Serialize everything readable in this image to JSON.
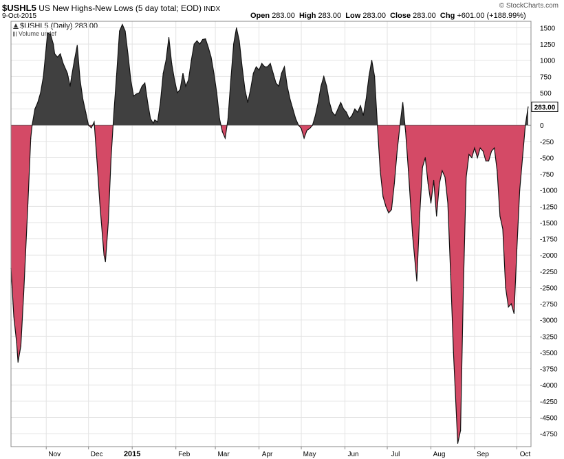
{
  "header": {
    "symbol": "$USHL5",
    "description": "US New Highs-New Lows (5 day total; EOD)",
    "exchange": "INDX",
    "date": "9-Oct-2015",
    "copyright": "© StockCharts.com",
    "open_label": "Open",
    "open": "283.00",
    "high_label": "High",
    "high": "283.00",
    "low_label": "Low",
    "low": "283.00",
    "close_label": "Close",
    "close": "283.00",
    "chg_label": "Chg",
    "chg": "+601.00 (+188.99%)"
  },
  "legend": {
    "series_label": "$USHL5 (Daily) 283.00",
    "volume_label": "Volume undef"
  },
  "colors": {
    "positive_fill": "#404040",
    "negative_fill": "#d44a66",
    "line": "#111111",
    "grid": "#e3e3e3",
    "last_value_box": "#ffffff"
  },
  "chart_data": {
    "type": "area",
    "title": "US New Highs-New Lows (5 day total; EOD)",
    "ylim": [
      -4950,
      1600
    ],
    "yticks": [
      1500,
      1250,
      1000,
      750,
      500,
      250,
      0,
      -250,
      -500,
      -750,
      -1000,
      -1250,
      -1500,
      -1750,
      -2000,
      -2250,
      -2500,
      -2750,
      -3000,
      -3250,
      -3500,
      -3750,
      -4000,
      -4250,
      -4500,
      -4750
    ],
    "xlabels": [
      {
        "label": "Nov",
        "date": "2014-11-01"
      },
      {
        "label": "Dec",
        "date": "2014-12-01"
      },
      {
        "label": "2015",
        "date": "2015-01-01",
        "bold": true
      },
      {
        "label": "Feb",
        "date": "2015-02-01"
      },
      {
        "label": "Mar",
        "date": "2015-03-01"
      },
      {
        "label": "Apr",
        "date": "2015-04-01"
      },
      {
        "label": "May",
        "date": "2015-05-01"
      },
      {
        "label": "Jun",
        "date": "2015-06-01"
      },
      {
        "label": "Jul",
        "date": "2015-07-01"
      },
      {
        "label": "Aug",
        "date": "2015-08-01"
      },
      {
        "label": "Sep",
        "date": "2015-09-01"
      },
      {
        "label": "Oct",
        "date": "2015-10-01"
      }
    ],
    "last_value": "283.00",
    "grid": true,
    "points": [
      [
        "2014-10-07",
        -2200
      ],
      [
        "2014-10-09",
        -2950
      ],
      [
        "2014-10-11",
        -3350
      ],
      [
        "2014-10-12",
        -3650
      ],
      [
        "2014-10-14",
        -3400
      ],
      [
        "2014-10-16",
        -2600
      ],
      [
        "2014-10-19",
        -1200
      ],
      [
        "2014-10-21",
        -200
      ],
      [
        "2014-10-22",
        0
      ],
      [
        "2014-10-24",
        250
      ],
      [
        "2014-10-26",
        350
      ],
      [
        "2014-10-28",
        500
      ],
      [
        "2014-10-30",
        750
      ],
      [
        "2014-11-01",
        1200
      ],
      [
        "2014-11-02",
        1420
      ],
      [
        "2014-11-04",
        1400
      ],
      [
        "2014-11-06",
        1250
      ],
      [
        "2014-11-07",
        1100
      ],
      [
        "2014-11-09",
        1050
      ],
      [
        "2014-11-11",
        1100
      ],
      [
        "2014-11-13",
        950
      ],
      [
        "2014-11-16",
        800
      ],
      [
        "2014-11-18",
        600
      ],
      [
        "2014-11-19",
        750
      ],
      [
        "2014-11-21",
        1000
      ],
      [
        "2014-11-23",
        1230
      ],
      [
        "2014-11-25",
        700
      ],
      [
        "2014-11-27",
        400
      ],
      [
        "2014-11-29",
        200
      ],
      [
        "2014-12-01",
        0
      ],
      [
        "2014-12-03",
        -40
      ],
      [
        "2014-12-05",
        50
      ],
      [
        "2014-12-07",
        -550
      ],
      [
        "2014-12-09",
        -1200
      ],
      [
        "2014-12-12",
        -2000
      ],
      [
        "2014-12-13",
        -2100
      ],
      [
        "2014-12-15",
        -1500
      ],
      [
        "2014-12-17",
        -500
      ],
      [
        "2014-12-19",
        200
      ],
      [
        "2014-12-21",
        800
      ],
      [
        "2014-12-23",
        1450
      ],
      [
        "2014-12-25",
        1550
      ],
      [
        "2014-12-27",
        1450
      ],
      [
        "2014-12-29",
        1100
      ],
      [
        "2014-12-31",
        700
      ],
      [
        "2015-01-02",
        450
      ],
      [
        "2015-01-04",
        480
      ],
      [
        "2015-01-06",
        500
      ],
      [
        "2015-01-08",
        600
      ],
      [
        "2015-01-10",
        650
      ],
      [
        "2015-01-12",
        350
      ],
      [
        "2015-01-14",
        100
      ],
      [
        "2015-01-16",
        30
      ],
      [
        "2015-01-17",
        80
      ],
      [
        "2015-01-19",
        50
      ],
      [
        "2015-01-21",
        350
      ],
      [
        "2015-01-23",
        800
      ],
      [
        "2015-01-25",
        1000
      ],
      [
        "2015-01-27",
        1350
      ],
      [
        "2015-01-29",
        950
      ],
      [
        "2015-01-31",
        700
      ],
      [
        "2015-02-02",
        500
      ],
      [
        "2015-02-04",
        550
      ],
      [
        "2015-02-06",
        800
      ],
      [
        "2015-02-08",
        600
      ],
      [
        "2015-02-10",
        700
      ],
      [
        "2015-02-12",
        1000
      ],
      [
        "2015-02-14",
        1250
      ],
      [
        "2015-02-16",
        1300
      ],
      [
        "2015-02-18",
        1250
      ],
      [
        "2015-02-20",
        1320
      ],
      [
        "2015-02-22",
        1330
      ],
      [
        "2015-02-24",
        1200
      ],
      [
        "2015-02-26",
        1050
      ],
      [
        "2015-02-28",
        800
      ],
      [
        "2015-03-02",
        500
      ],
      [
        "2015-03-04",
        100
      ],
      [
        "2015-03-06",
        -100
      ],
      [
        "2015-03-08",
        -200
      ],
      [
        "2015-03-10",
        100
      ],
      [
        "2015-03-12",
        700
      ],
      [
        "2015-03-14",
        1250
      ],
      [
        "2015-03-16",
        1500
      ],
      [
        "2015-03-18",
        1300
      ],
      [
        "2015-03-20",
        900
      ],
      [
        "2015-03-22",
        550
      ],
      [
        "2015-03-24",
        350
      ],
      [
        "2015-03-26",
        550
      ],
      [
        "2015-03-28",
        800
      ],
      [
        "2015-03-30",
        900
      ],
      [
        "2015-04-01",
        850
      ],
      [
        "2015-04-03",
        950
      ],
      [
        "2015-04-05",
        900
      ],
      [
        "2015-04-07",
        900
      ],
      [
        "2015-04-09",
        950
      ],
      [
        "2015-04-11",
        800
      ],
      [
        "2015-04-13",
        650
      ],
      [
        "2015-04-15",
        600
      ],
      [
        "2015-04-17",
        800
      ],
      [
        "2015-04-19",
        900
      ],
      [
        "2015-04-21",
        600
      ],
      [
        "2015-04-23",
        400
      ],
      [
        "2015-04-25",
        250
      ],
      [
        "2015-04-27",
        100
      ],
      [
        "2015-04-29",
        0
      ],
      [
        "2015-05-01",
        -50
      ],
      [
        "2015-05-03",
        -200
      ],
      [
        "2015-05-05",
        -80
      ],
      [
        "2015-05-07",
        -50
      ],
      [
        "2015-05-09",
        0
      ],
      [
        "2015-05-11",
        150
      ],
      [
        "2015-05-13",
        350
      ],
      [
        "2015-05-15",
        600
      ],
      [
        "2015-05-17",
        750
      ],
      [
        "2015-05-19",
        600
      ],
      [
        "2015-05-21",
        350
      ],
      [
        "2015-05-23",
        200
      ],
      [
        "2015-05-25",
        150
      ],
      [
        "2015-05-27",
        250
      ],
      [
        "2015-05-29",
        350
      ],
      [
        "2015-05-31",
        250
      ],
      [
        "2015-06-02",
        200
      ],
      [
        "2015-06-04",
        100
      ],
      [
        "2015-06-06",
        150
      ],
      [
        "2015-06-08",
        250
      ],
      [
        "2015-06-10",
        200
      ],
      [
        "2015-06-12",
        300
      ],
      [
        "2015-06-14",
        150
      ],
      [
        "2015-06-16",
        400
      ],
      [
        "2015-06-18",
        750
      ],
      [
        "2015-06-20",
        1000
      ],
      [
        "2015-06-22",
        750
      ],
      [
        "2015-06-24",
        0
      ],
      [
        "2015-06-26",
        -700
      ],
      [
        "2015-06-28",
        -1100
      ],
      [
        "2015-06-30",
        -1250
      ],
      [
        "2015-07-02",
        -1350
      ],
      [
        "2015-07-04",
        -1300
      ],
      [
        "2015-07-06",
        -900
      ],
      [
        "2015-07-08",
        -400
      ],
      [
        "2015-07-10",
        0
      ],
      [
        "2015-07-12",
        350
      ],
      [
        "2015-07-14",
        -100
      ],
      [
        "2015-07-16",
        -700
      ],
      [
        "2015-07-19",
        -1700
      ],
      [
        "2015-07-22",
        -2400
      ],
      [
        "2015-07-24",
        -1400
      ],
      [
        "2015-07-26",
        -650
      ],
      [
        "2015-07-28",
        -500
      ],
      [
        "2015-07-30",
        -900
      ],
      [
        "2015-08-01",
        -1200
      ],
      [
        "2015-08-03",
        -850
      ],
      [
        "2015-08-05",
        -1400
      ],
      [
        "2015-08-07",
        -900
      ],
      [
        "2015-08-09",
        -700
      ],
      [
        "2015-08-11",
        -800
      ],
      [
        "2015-08-13",
        -1200
      ],
      [
        "2015-08-15",
        -2300
      ],
      [
        "2015-08-17",
        -3500
      ],
      [
        "2015-08-20",
        -4900
      ],
      [
        "2015-08-22",
        -4700
      ],
      [
        "2015-08-24",
        -2500
      ],
      [
        "2015-08-26",
        -800
      ],
      [
        "2015-08-28",
        -450
      ],
      [
        "2015-08-30",
        -500
      ],
      [
        "2015-09-01",
        -350
      ],
      [
        "2015-09-03",
        -500
      ],
      [
        "2015-09-05",
        -350
      ],
      [
        "2015-09-07",
        -400
      ],
      [
        "2015-09-09",
        -550
      ],
      [
        "2015-09-11",
        -550
      ],
      [
        "2015-09-13",
        -400
      ],
      [
        "2015-09-15",
        -350
      ],
      [
        "2015-09-17",
        -700
      ],
      [
        "2015-09-19",
        -1400
      ],
      [
        "2015-09-21",
        -1600
      ],
      [
        "2015-09-23",
        -2500
      ],
      [
        "2015-09-25",
        -2800
      ],
      [
        "2015-09-27",
        -2750
      ],
      [
        "2015-09-29",
        -2900
      ],
      [
        "2015-10-01",
        -1900
      ],
      [
        "2015-10-03",
        -1000
      ],
      [
        "2015-10-05",
        -500
      ],
      [
        "2015-10-07",
        0
      ],
      [
        "2015-10-09",
        283
      ]
    ]
  }
}
